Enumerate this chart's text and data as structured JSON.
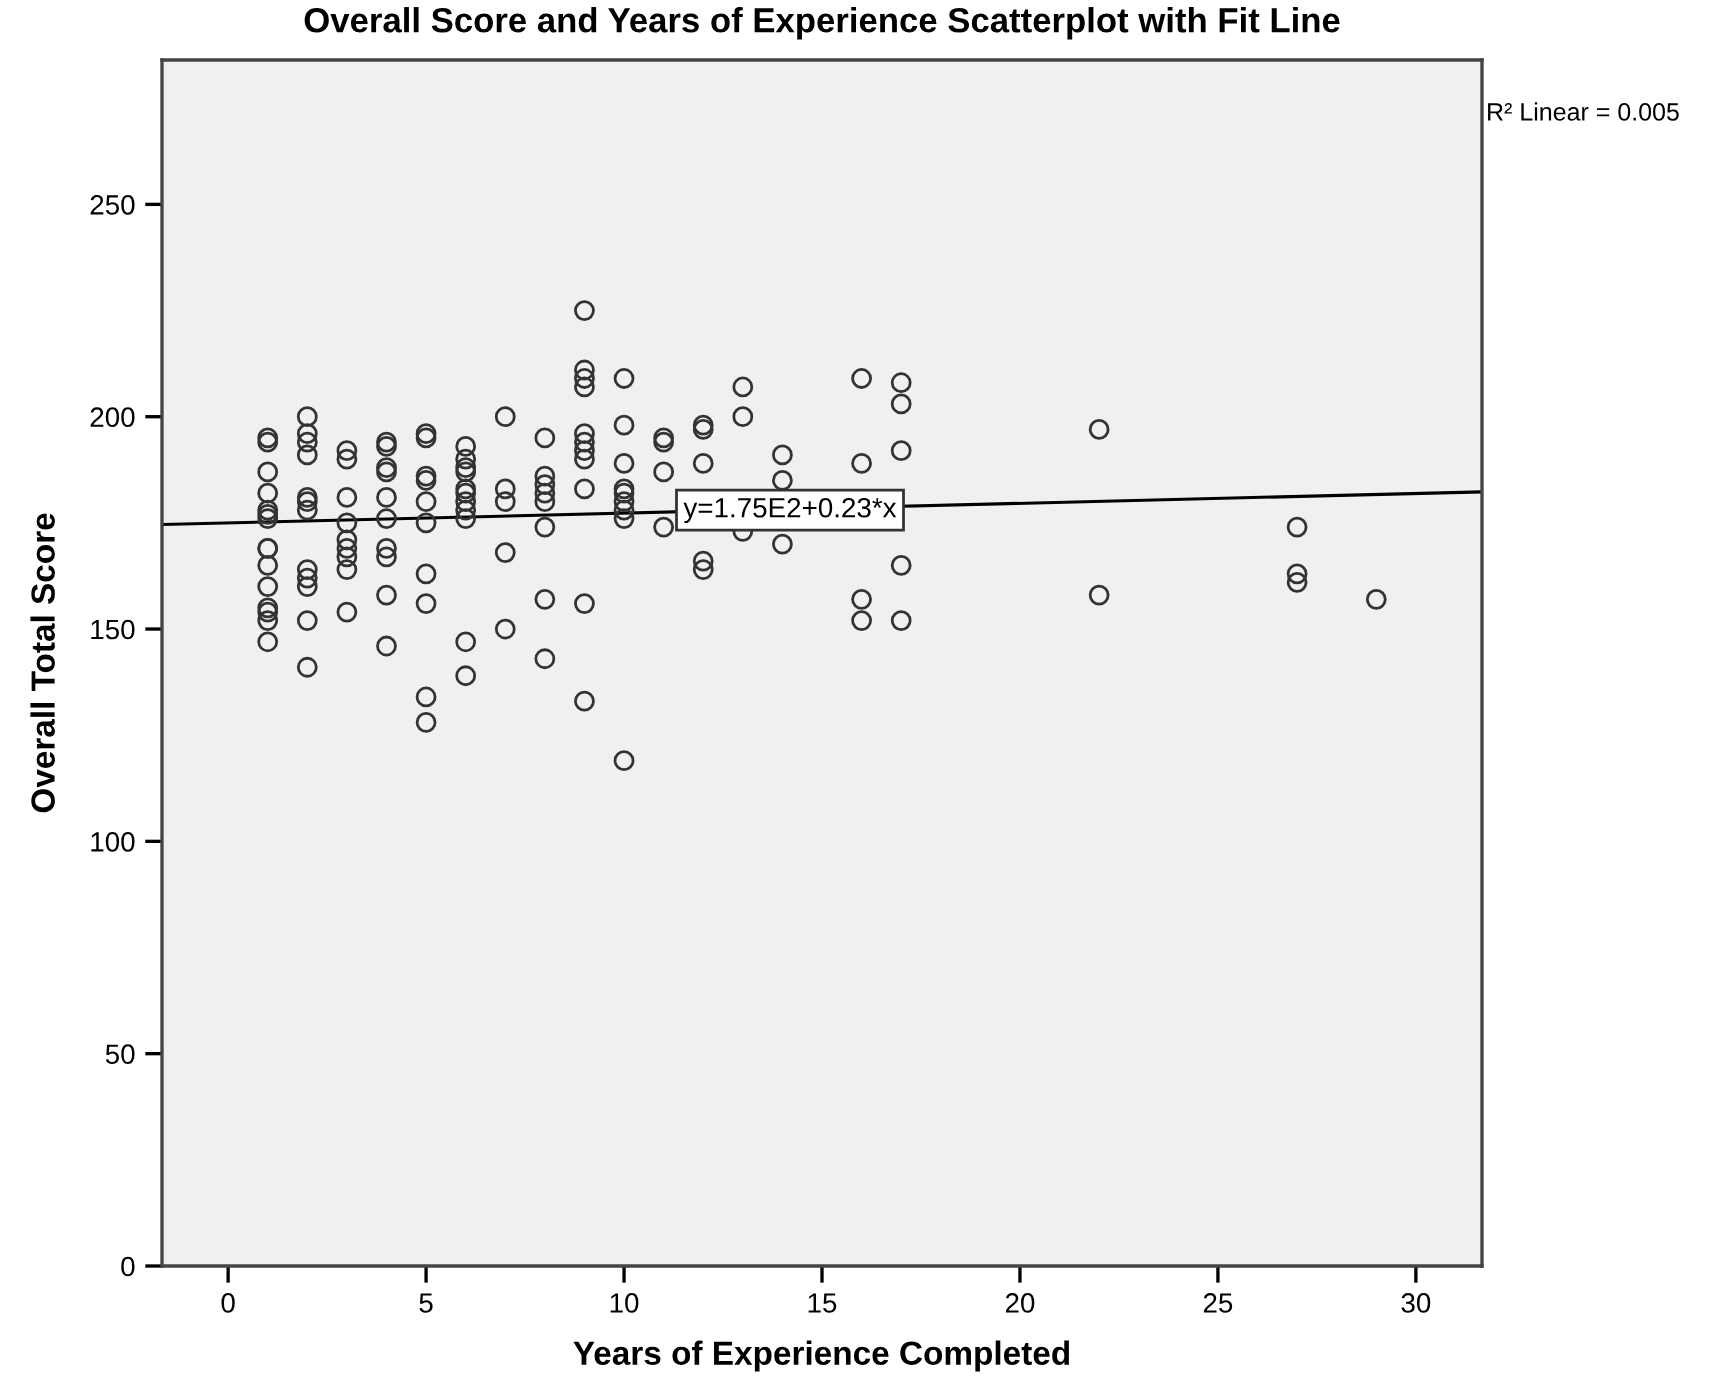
{
  "chart_data": {
    "type": "scatter",
    "title": "Overall Score and Years of Experience Scatterplot with Fit Line",
    "xlabel": "Years of Experience Completed",
    "ylabel": "Overall Total Score",
    "xlim": [
      -1.67,
      31.67
    ],
    "ylim": [
      0,
      284
    ],
    "xticks": [
      0,
      5,
      10,
      15,
      20,
      25,
      30
    ],
    "yticks": [
      0,
      50,
      100,
      150,
      200,
      250
    ],
    "grid": false,
    "legend": false,
    "series": [
      {
        "color": "#333333",
        "marker": "circle",
        "x": [
          1,
          1,
          1,
          1,
          1,
          1,
          1,
          1,
          1,
          1,
          1,
          1,
          1,
          1,
          1,
          2,
          2,
          2,
          2,
          2,
          2,
          2,
          2,
          2,
          2,
          2,
          2,
          3,
          3,
          3,
          3,
          3,
          3,
          3,
          3,
          3,
          4,
          4,
          4,
          4,
          4,
          4,
          4,
          4,
          4,
          4,
          5,
          5,
          5,
          5,
          5,
          5,
          5,
          5,
          5,
          5,
          6,
          6,
          6,
          6,
          6,
          6,
          6,
          6,
          6,
          6,
          6,
          7,
          7,
          7,
          7,
          7,
          8,
          8,
          8,
          8,
          8,
          8,
          8,
          8,
          9,
          9,
          9,
          9,
          9,
          9,
          9,
          9,
          9,
          9,
          9,
          10,
          10,
          10,
          10,
          10,
          10,
          10,
          10,
          10,
          11,
          11,
          11,
          11,
          12,
          12,
          12,
          12,
          12,
          13,
          13,
          13,
          14,
          14,
          14,
          16,
          16,
          16,
          16,
          17,
          17,
          17,
          17,
          17,
          22,
          22,
          27,
          27,
          27,
          29
        ],
        "values": [
          195,
          194,
          187,
          182,
          178,
          177,
          176,
          169,
          169,
          165,
          160,
          155,
          154,
          152,
          147,
          200,
          196,
          194,
          191,
          181,
          180,
          178,
          164,
          162,
          160,
          152,
          141,
          192,
          190,
          181,
          175,
          171,
          169,
          167,
          164,
          154,
          194,
          193,
          188,
          187,
          181,
          176,
          169,
          167,
          158,
          146,
          196,
          195,
          186,
          185,
          180,
          175,
          163,
          156,
          134,
          128,
          193,
          190,
          188,
          187,
          183,
          182,
          180,
          178,
          176,
          147,
          139,
          200,
          183,
          180,
          168,
          150,
          195,
          186,
          184,
          182,
          180,
          174,
          157,
          143,
          225,
          211,
          209,
          207,
          196,
          194,
          192,
          190,
          183,
          156,
          133,
          209,
          198,
          189,
          183,
          182,
          180,
          178,
          176,
          119,
          195,
          194,
          187,
          174,
          198,
          197,
          189,
          166,
          164,
          207,
          200,
          173,
          191,
          185,
          170,
          209,
          189,
          157,
          152,
          208,
          203,
          192,
          165,
          152,
          197,
          158,
          174,
          163,
          161,
          157
        ]
      },
      {
        "type": "line",
        "color": "#000000",
        "line_style": "solid",
        "x": [
          -1.67,
          31.67
        ],
        "values": [
          174.6,
          182.3
        ]
      }
    ],
    "annotations": [
      {
        "text": "y=1.75E2+0.23*x",
        "x": 11.5,
        "y": 178
      },
      "R² Linear = 0.005"
    ]
  }
}
